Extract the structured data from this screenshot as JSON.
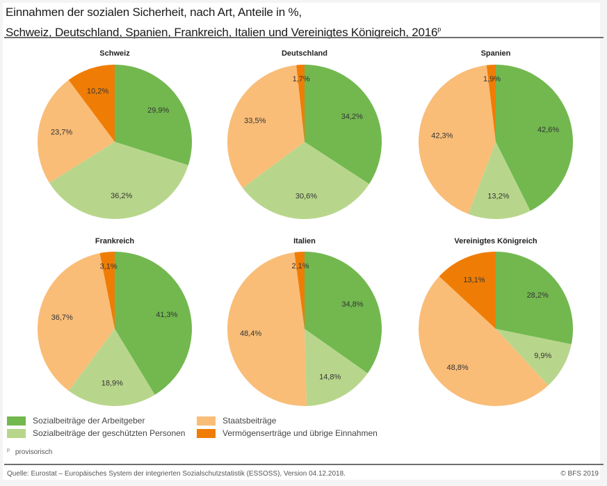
{
  "title": {
    "line1": "Einnahmen der sozialen Sicherheit, nach Art, Anteile in %,",
    "line2": "Schweiz, Deutschland, Spanien, Frankreich, Italien und Vereinigtes Königreich, 2016",
    "superscript": "p"
  },
  "colors": {
    "arbeitgeber": "#72b84f",
    "geschuetzte": "#b8d68b",
    "staat": "#f9bd78",
    "vermoegen": "#ef7d05"
  },
  "legend": [
    {
      "key": "arbeitgeber",
      "label": "Sozialbeiträge der Arbeitgeber"
    },
    {
      "key": "geschuetzte",
      "label": "Sozialbeiträge der geschützten Personen"
    },
    {
      "key": "staat",
      "label": "Staatsbeiträge"
    },
    {
      "key": "vermoegen",
      "label": "Vermögenserträge und übrige Einnahmen"
    }
  ],
  "chart_data": [
    {
      "type": "pie",
      "title": "Schweiz",
      "categories": [
        "Sozialbeiträge der Arbeitgeber",
        "Sozialbeiträge der geschützten Personen",
        "Staatsbeiträge",
        "Vermögenserträge und übrige Einnahmen"
      ],
      "values": [
        29.9,
        36.2,
        23.7,
        10.2
      ],
      "labels": [
        "29,9%",
        "36,2%",
        "23,7%",
        "10,2%"
      ]
    },
    {
      "type": "pie",
      "title": "Deutschland",
      "categories": [
        "Sozialbeiträge der Arbeitgeber",
        "Sozialbeiträge der geschützten Personen",
        "Staatsbeiträge",
        "Vermögenserträge und übrige Einnahmen"
      ],
      "values": [
        34.2,
        30.6,
        33.5,
        1.7
      ],
      "labels": [
        "34,2%",
        "30,6%",
        "33,5%",
        "1,7%"
      ]
    },
    {
      "type": "pie",
      "title": "Spanien",
      "categories": [
        "Sozialbeiträge der Arbeitgeber",
        "Sozialbeiträge der geschützten Personen",
        "Staatsbeiträge",
        "Vermögenserträge und übrige Einnahmen"
      ],
      "values": [
        42.6,
        13.2,
        42.3,
        1.9
      ],
      "labels": [
        "42,6%",
        "13,2%",
        "42,3%",
        "1,9%"
      ]
    },
    {
      "type": "pie",
      "title": "Frankreich",
      "categories": [
        "Sozialbeiträge der Arbeitgeber",
        "Sozialbeiträge der geschützten Personen",
        "Staatsbeiträge",
        "Vermögenserträge und übrige Einnahmen"
      ],
      "values": [
        41.3,
        18.9,
        36.7,
        3.1
      ],
      "labels": [
        "41,3%",
        "18,9%",
        "36,7%",
        "3,1%"
      ]
    },
    {
      "type": "pie",
      "title": "Italien",
      "categories": [
        "Sozialbeiträge der Arbeitgeber",
        "Sozialbeiträge der geschützten Personen",
        "Staatsbeiträge",
        "Vermögenserträge und übrige Einnahmen"
      ],
      "values": [
        34.8,
        14.8,
        48.4,
        2.1
      ],
      "labels": [
        "34,8%",
        "14,8%",
        "48,4%",
        "2,1%"
      ]
    },
    {
      "type": "pie",
      "title": "Vereinigtes Königreich",
      "categories": [
        "Sozialbeiträge der Arbeitgeber",
        "Sozialbeiträge der geschützten Personen",
        "Staatsbeiträge",
        "Vermögenserträge und übrige Einnahmen"
      ],
      "values": [
        28.2,
        9.9,
        48.8,
        13.1
      ],
      "labels": [
        "28,2%",
        "9,9%",
        "48,8%",
        "13,1%"
      ]
    }
  ],
  "note": {
    "marker": "p",
    "text": "provisorisch"
  },
  "source": "Quelle: Eurostat – Europäisches System der integrierten Sozialschutzstatistik (ESSOSS), Version 04.12.2018.",
  "copyright": "© BFS 2019"
}
